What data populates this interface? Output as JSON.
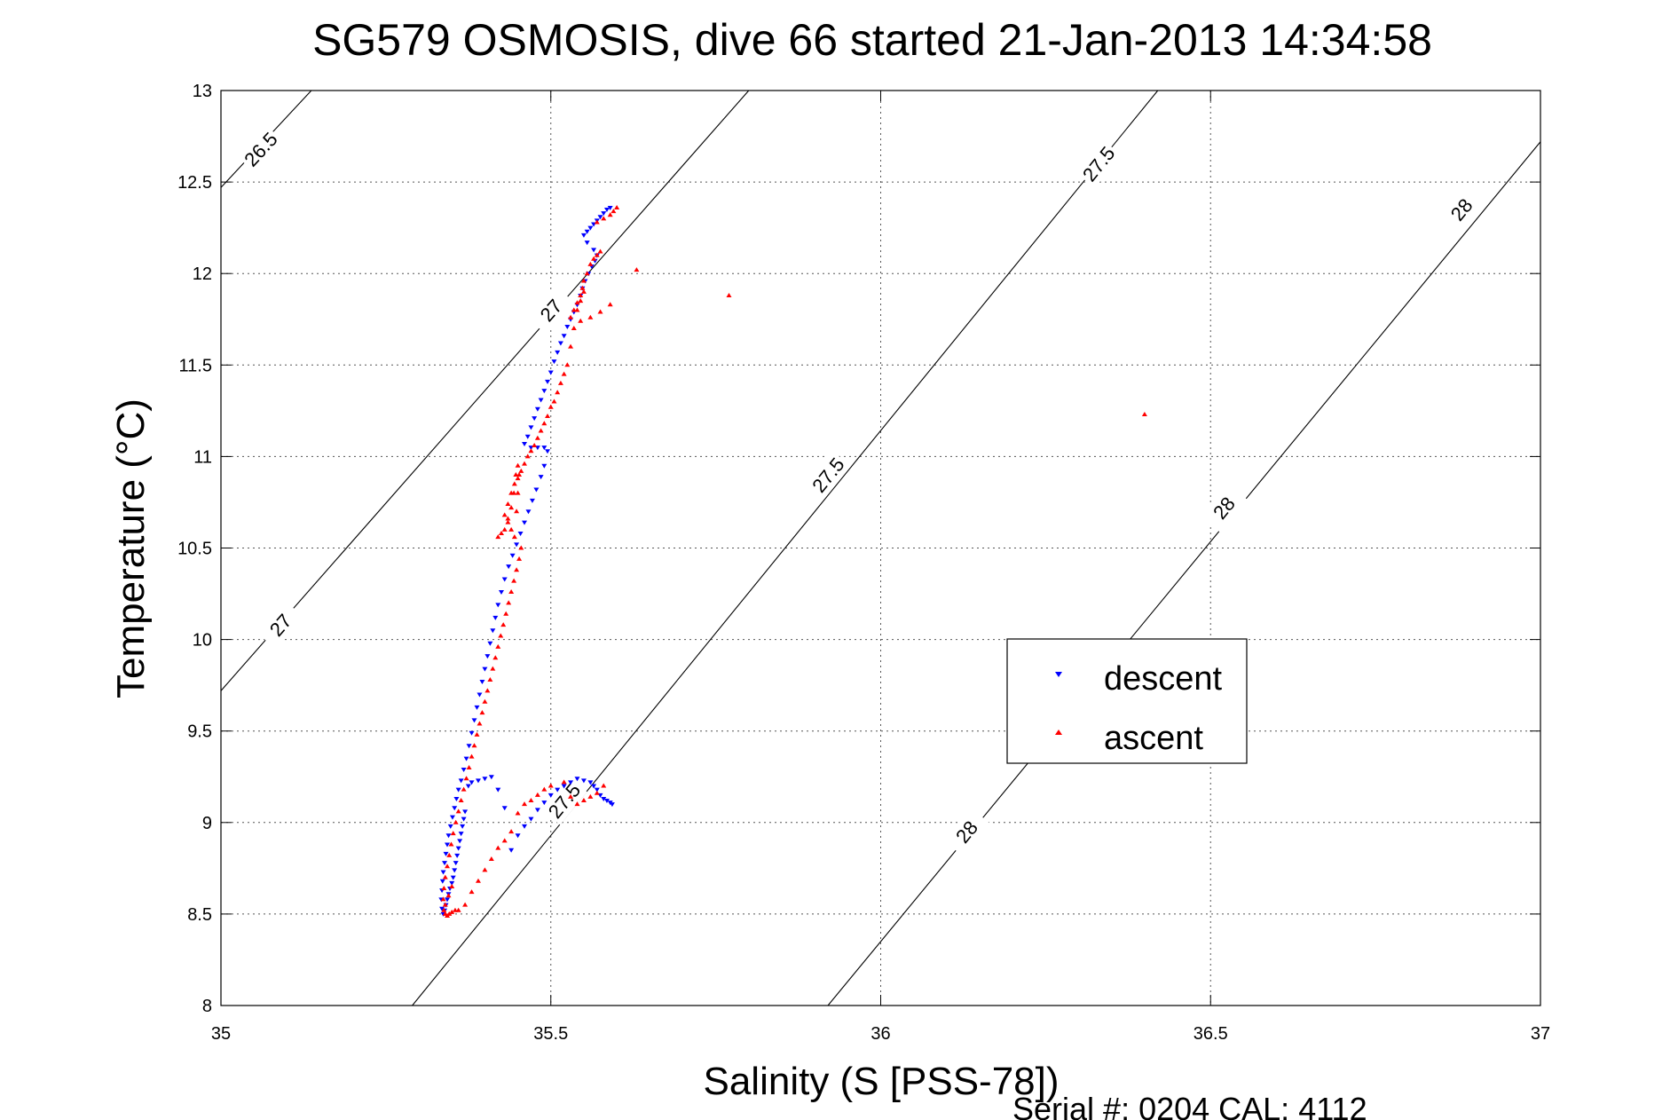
{
  "chart_data": {
    "type": "scatter",
    "title": "SG579 OSMOSIS, dive 66 started 21-Jan-2013 14:34:58",
    "xlabel": "Salinity (S [PSS-78])",
    "ylabel": "Temperature (°C)",
    "xlim": [
      35,
      37
    ],
    "ylim": [
      8,
      13
    ],
    "x_ticks": [
      35,
      35.5,
      36,
      36.5,
      37
    ],
    "x_tick_labels": [
      "35",
      "35.5",
      "36",
      "36.5",
      "37"
    ],
    "y_ticks": [
      8,
      8.5,
      9,
      9.5,
      10,
      10.5,
      11,
      11.5,
      12,
      12.5,
      13
    ],
    "y_tick_labels": [
      "8",
      "8.5",
      "9",
      "9.5",
      "10",
      "10.5",
      "11",
      "11.5",
      "12",
      "12.5",
      "13"
    ],
    "grid": true,
    "legend_position": "center-right",
    "contours": [
      {
        "level": "26.5",
        "points": [
          [
            35.0,
            12.47
          ],
          [
            35.137,
            13.0
          ]
        ],
        "labels": [
          {
            "x": 35.06,
            "y": 12.68
          }
        ]
      },
      {
        "level": "27",
        "points": [
          [
            35.0,
            9.72
          ],
          [
            35.8,
            13.0
          ]
        ],
        "labels": [
          {
            "x": 35.09,
            "y": 10.08
          },
          {
            "x": 35.5,
            "y": 11.8
          }
        ]
      },
      {
        "level": "27.5",
        "points": [
          [
            35.29,
            8.0
          ],
          [
            36.42,
            13.0
          ]
        ],
        "labels": [
          {
            "x": 35.52,
            "y": 9.12
          },
          {
            "x": 35.92,
            "y": 10.9
          },
          {
            "x": 36.33,
            "y": 12.6
          }
        ]
      },
      {
        "level": "28",
        "points": [
          [
            35.92,
            8.0
          ],
          [
            37.0,
            12.72
          ]
        ],
        "labels": [
          {
            "x": 36.13,
            "y": 8.95
          },
          {
            "x": 36.52,
            "y": 10.72
          },
          {
            "x": 36.88,
            "y": 12.35
          }
        ]
      }
    ],
    "series": [
      {
        "name": "descent",
        "color": "#0000ff",
        "marker": "triangle-down",
        "x": [
          35.59,
          35.585,
          35.58,
          35.575,
          35.57,
          35.565,
          35.56,
          35.555,
          35.55,
          35.555,
          35.565,
          35.57,
          35.567,
          35.562,
          35.557,
          35.552,
          35.548,
          35.545,
          35.54,
          35.535,
          35.53,
          35.525,
          35.52,
          35.515,
          35.51,
          35.505,
          35.5,
          35.495,
          35.49,
          35.485,
          35.48,
          35.475,
          35.47,
          35.465,
          35.46,
          35.47,
          35.48,
          35.49,
          35.495,
          35.49,
          35.485,
          35.478,
          35.472,
          35.466,
          35.46,
          35.454,
          35.448,
          35.442,
          35.436,
          35.43,
          35.425,
          35.42,
          35.416,
          35.412,
          35.408,
          35.404,
          35.4,
          35.396,
          35.392,
          35.388,
          35.384,
          35.38,
          35.376,
          35.372,
          35.368,
          35.364,
          35.36,
          35.357,
          35.354,
          35.351,
          35.348,
          35.345,
          35.343,
          35.341,
          35.339,
          35.337,
          35.336,
          35.335,
          35.334,
          35.335,
          35.337,
          35.339,
          35.341,
          35.343,
          35.345,
          35.347,
          35.35,
          35.352,
          35.354,
          35.356,
          35.358,
          35.36,
          35.362,
          35.364,
          35.366,
          35.368,
          35.37,
          35.375,
          35.38,
          35.39,
          35.4,
          35.41,
          35.42,
          35.43,
          35.44,
          35.45,
          35.46,
          35.47,
          35.48,
          35.49,
          35.5,
          35.51,
          35.52,
          35.53,
          35.54,
          35.55,
          35.56,
          35.565,
          35.57,
          35.575,
          35.58,
          35.585,
          35.59,
          35.593
        ],
        "y": [
          12.36,
          12.35,
          12.33,
          12.31,
          12.29,
          12.27,
          12.25,
          12.23,
          12.21,
          12.17,
          12.13,
          12.1,
          12.07,
          12.04,
          12.0,
          11.96,
          11.92,
          11.88,
          11.83,
          11.79,
          11.75,
          11.71,
          11.66,
          11.62,
          11.57,
          11.52,
          11.46,
          11.41,
          11.36,
          11.31,
          11.26,
          11.21,
          11.16,
          11.11,
          11.07,
          11.05,
          11.05,
          11.05,
          11.03,
          10.95,
          10.89,
          10.82,
          10.76,
          10.7,
          10.64,
          10.58,
          10.52,
          10.46,
          10.4,
          10.33,
          10.26,
          10.19,
          10.12,
          10.05,
          9.98,
          9.91,
          9.84,
          9.77,
          9.7,
          9.63,
          9.56,
          9.49,
          9.42,
          9.35,
          9.29,
          9.23,
          9.18,
          9.13,
          9.08,
          9.03,
          8.98,
          8.93,
          8.88,
          8.83,
          8.78,
          8.73,
          8.68,
          8.63,
          8.58,
          8.53,
          8.5,
          8.52,
          8.55,
          8.58,
          8.61,
          8.64,
          8.67,
          8.7,
          8.74,
          8.78,
          8.82,
          8.86,
          8.9,
          8.94,
          8.98,
          9.02,
          9.06,
          9.2,
          9.22,
          9.23,
          9.24,
          9.25,
          9.18,
          9.08,
          8.85,
          8.93,
          8.98,
          9.02,
          9.07,
          9.11,
          9.15,
          9.18,
          9.2,
          9.22,
          9.24,
          9.23,
          9.22,
          9.2,
          9.18,
          9.15,
          9.13,
          9.12,
          9.11,
          9.1
        ]
      },
      {
        "name": "ascent",
        "color": "#ff0000",
        "marker": "triangle-up",
        "x": [
          35.6,
          35.595,
          35.59,
          35.58,
          35.57,
          35.575,
          35.57,
          35.565,
          35.56,
          35.555,
          35.55,
          35.548,
          35.545,
          35.54,
          35.535,
          35.53,
          35.545,
          35.56,
          35.575,
          35.59,
          35.63,
          35.77,
          35.55,
          35.545,
          35.54,
          35.535,
          35.53,
          35.525,
          35.52,
          35.515,
          35.51,
          35.505,
          35.5,
          35.495,
          35.49,
          35.485,
          35.48,
          35.475,
          35.47,
          35.465,
          35.46,
          35.455,
          35.45,
          35.445,
          35.44,
          35.435,
          35.43,
          35.435,
          35.44,
          35.445,
          35.448,
          35.45,
          35.452,
          35.45,
          35.447,
          35.444,
          35.44,
          35.435,
          35.43,
          35.425,
          35.42,
          35.455,
          35.452,
          35.448,
          35.444,
          35.44,
          35.436,
          35.432,
          35.428,
          35.424,
          35.42,
          35.416,
          35.412,
          35.408,
          35.404,
          35.4,
          35.396,
          35.392,
          35.388,
          35.384,
          35.38,
          35.376,
          35.372,
          35.368,
          35.364,
          35.36,
          35.356,
          35.352,
          35.349,
          35.346,
          35.343,
          35.34,
          35.338,
          35.337,
          35.338,
          35.34,
          35.343,
          35.346,
          35.35,
          35.355,
          35.34,
          35.345,
          35.35,
          35.36,
          35.37,
          35.38,
          35.39,
          35.4,
          35.41,
          35.42,
          35.43,
          35.44,
          35.45,
          35.46,
          35.47,
          35.48,
          35.49,
          35.5,
          35.52,
          35.53,
          35.54,
          35.55,
          35.56,
          35.57,
          35.58,
          36.4
        ],
        "y": [
          12.36,
          12.34,
          12.32,
          12.3,
          12.28,
          12.12,
          12.1,
          12.08,
          12.05,
          12.0,
          11.96,
          11.92,
          11.88,
          11.84,
          11.8,
          11.76,
          11.74,
          11.76,
          11.79,
          11.83,
          12.02,
          11.88,
          11.9,
          11.85,
          11.8,
          11.7,
          11.6,
          11.5,
          11.45,
          11.4,
          11.35,
          11.3,
          11.27,
          11.22,
          11.18,
          11.14,
          11.1,
          11.06,
          11.03,
          11.0,
          10.96,
          10.92,
          10.88,
          10.85,
          10.8,
          10.74,
          10.68,
          10.64,
          10.6,
          10.56,
          10.7,
          10.8,
          10.9,
          10.95,
          10.9,
          10.8,
          10.72,
          10.66,
          10.6,
          10.58,
          10.56,
          10.5,
          10.44,
          10.38,
          10.32,
          10.26,
          10.2,
          10.14,
          10.08,
          10.02,
          9.96,
          9.9,
          9.84,
          9.78,
          9.72,
          9.66,
          9.6,
          9.54,
          9.48,
          9.42,
          9.36,
          9.3,
          9.24,
          9.18,
          9.12,
          9.06,
          9.0,
          8.94,
          8.88,
          8.82,
          8.76,
          8.7,
          8.64,
          8.58,
          8.52,
          8.5,
          8.49,
          8.5,
          8.51,
          8.52,
          8.55,
          8.6,
          8.65,
          8.52,
          8.55,
          8.62,
          8.68,
          8.74,
          8.8,
          8.86,
          8.9,
          8.95,
          9.05,
          9.1,
          9.12,
          9.15,
          9.18,
          9.2,
          9.22,
          9.14,
          9.1,
          9.12,
          9.14,
          9.16,
          9.2,
          11.23
        ]
      }
    ]
  },
  "footer": {
    "serial_text": "Serial #: 0204  CAL: 4112"
  }
}
